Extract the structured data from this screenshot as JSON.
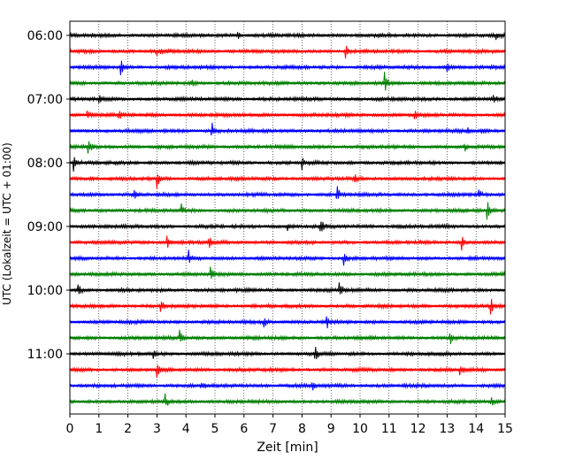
{
  "chart_data": {
    "type": "line",
    "subtype": "helicorder",
    "xlabel": "Zeit  [min]",
    "ylabel": "UTC (Lokalzeit = UTC + 01:00)",
    "xlim": [
      0,
      15
    ],
    "xticks": [
      "0",
      "1",
      "2",
      "3",
      "4",
      "5",
      "6",
      "7",
      "8",
      "9",
      "10",
      "11",
      "12",
      "13",
      "14",
      "15"
    ],
    "grid": "vertical dotted",
    "trace_interval_minutes": 15,
    "trace_colors": [
      "#000000",
      "#ff0000",
      "#0000ff",
      "#008000"
    ],
    "row_labels": [
      {
        "text": "06:00",
        "row": 0
      },
      {
        "text": "07:00",
        "row": 4
      },
      {
        "text": "08:00",
        "row": 8
      },
      {
        "text": "09:00",
        "row": 12
      },
      {
        "text": "10:00",
        "row": 16
      },
      {
        "text": "11:00",
        "row": 20
      }
    ],
    "series": [
      {
        "start": "06:00",
        "color": "#000000",
        "events": [
          {
            "x": 5.8,
            "a": 4
          },
          {
            "x": 14.7,
            "a": 4
          }
        ]
      },
      {
        "start": "06:15",
        "color": "#ff0000",
        "events": [
          {
            "x": 0.5,
            "a": 3
          },
          {
            "x": 3.0,
            "a": 4
          },
          {
            "x": 9.5,
            "a": 8
          }
        ]
      },
      {
        "start": "06:30",
        "color": "#0000ff",
        "events": [
          {
            "x": 1.75,
            "a": 10
          },
          {
            "x": 13.0,
            "a": 7
          }
        ]
      },
      {
        "start": "06:45",
        "color": "#008000",
        "events": [
          {
            "x": 4.2,
            "a": 3
          },
          {
            "x": 10.85,
            "a": 11
          }
        ]
      },
      {
        "start": "07:00",
        "color": "#000000",
        "events": [
          {
            "x": 1.0,
            "a": 4
          },
          {
            "x": 14.6,
            "a": 5
          }
        ]
      },
      {
        "start": "07:15",
        "color": "#ff0000",
        "events": [
          {
            "x": 0.6,
            "a": 5
          },
          {
            "x": 1.7,
            "a": 7
          },
          {
            "x": 11.9,
            "a": 4
          }
        ]
      },
      {
        "start": "07:30",
        "color": "#0000ff",
        "events": [
          {
            "x": 4.9,
            "a": 9
          },
          {
            "x": 13.7,
            "a": 4
          },
          {
            "x": 14.2,
            "a": 5
          }
        ]
      },
      {
        "start": "07:45",
        "color": "#008000",
        "events": [
          {
            "x": 0.65,
            "a": 7
          },
          {
            "x": 13.6,
            "a": 5
          }
        ]
      },
      {
        "start": "08:00",
        "color": "#000000",
        "events": [
          {
            "x": 0.15,
            "a": 11
          },
          {
            "x": 8.0,
            "a": 7
          }
        ]
      },
      {
        "start": "08:15",
        "color": "#ff0000",
        "events": [
          {
            "x": 0.7,
            "a": 5
          },
          {
            "x": 3.0,
            "a": 10
          },
          {
            "x": 9.8,
            "a": 5
          }
        ]
      },
      {
        "start": "08:30",
        "color": "#0000ff",
        "events": [
          {
            "x": 2.2,
            "a": 5
          },
          {
            "x": 9.2,
            "a": 10
          },
          {
            "x": 14.1,
            "a": 5
          }
        ]
      },
      {
        "start": "08:45",
        "color": "#008000",
        "events": [
          {
            "x": 3.85,
            "a": 6
          },
          {
            "x": 14.4,
            "a": 11
          }
        ]
      },
      {
        "start": "09:00",
        "color": "#000000",
        "events": [
          {
            "x": 7.5,
            "a": 5
          },
          {
            "x": 8.65,
            "a": 10
          }
        ]
      },
      {
        "start": "09:15",
        "color": "#ff0000",
        "events": [
          {
            "x": 3.35,
            "a": 9
          },
          {
            "x": 4.8,
            "a": 6
          },
          {
            "x": 13.5,
            "a": 8
          }
        ]
      },
      {
        "start": "09:30",
        "color": "#0000ff",
        "events": [
          {
            "x": 4.1,
            "a": 9
          },
          {
            "x": 9.45,
            "a": 8
          }
        ]
      },
      {
        "start": "09:45",
        "color": "#008000",
        "events": [
          {
            "x": 4.85,
            "a": 10
          }
        ]
      },
      {
        "start": "10:00",
        "color": "#000000",
        "events": [
          {
            "x": 0.3,
            "a": 6
          },
          {
            "x": 9.3,
            "a": 11
          }
        ]
      },
      {
        "start": "10:15",
        "color": "#ff0000",
        "events": [
          {
            "x": 3.15,
            "a": 8
          },
          {
            "x": 14.5,
            "a": 10
          }
        ]
      },
      {
        "start": "10:30",
        "color": "#0000ff",
        "events": [
          {
            "x": 6.7,
            "a": 5
          },
          {
            "x": 8.85,
            "a": 7
          }
        ]
      },
      {
        "start": "10:45",
        "color": "#008000",
        "events": [
          {
            "x": 3.8,
            "a": 10
          },
          {
            "x": 13.1,
            "a": 7
          }
        ]
      },
      {
        "start": "11:00",
        "color": "#000000",
        "events": [
          {
            "x": 2.9,
            "a": 4
          },
          {
            "x": 8.45,
            "a": 10
          }
        ]
      },
      {
        "start": "11:15",
        "color": "#ff0000",
        "events": [
          {
            "x": 3.0,
            "a": 8
          },
          {
            "x": 13.45,
            "a": 10
          }
        ]
      },
      {
        "start": "11:30",
        "color": "#0000ff",
        "events": [
          {
            "x": 4.5,
            "a": 4
          },
          {
            "x": 8.35,
            "a": 6
          }
        ]
      },
      {
        "start": "11:45",
        "color": "#008000",
        "events": [
          {
            "x": 3.3,
            "a": 9
          },
          {
            "x": 14.5,
            "a": 6
          }
        ]
      }
    ]
  }
}
